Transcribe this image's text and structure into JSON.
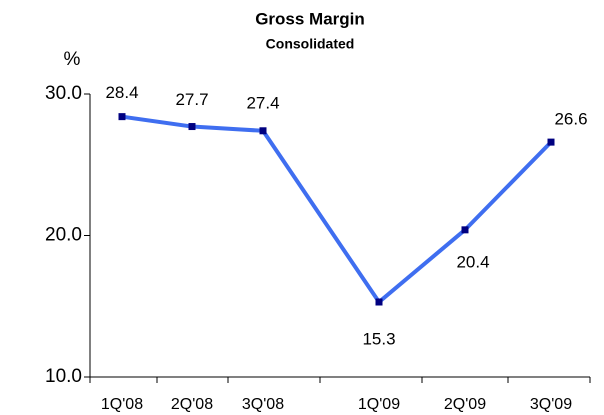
{
  "chart_data": {
    "type": "line",
    "title": "Gross Margin",
    "subtitle": "Consolidated",
    "y_label": "%",
    "categories": [
      "1Q'08",
      "2Q'08",
      "3Q'08",
      "1Q'09",
      "2Q'09",
      "3Q'09"
    ],
    "series": [
      {
        "name": "Gross Margin",
        "color": "#3f6ef0",
        "marker_color": "#000080",
        "values": [
          28.4,
          27.7,
          27.4,
          15.3,
          20.4,
          26.6
        ]
      }
    ],
    "ylim": [
      10,
      30
    ],
    "yticks": [
      {
        "value": 10,
        "label": "10.0"
      },
      {
        "value": 20,
        "label": "20.0"
      },
      {
        "value": 30,
        "label": "30.0"
      }
    ],
    "grid": false
  }
}
